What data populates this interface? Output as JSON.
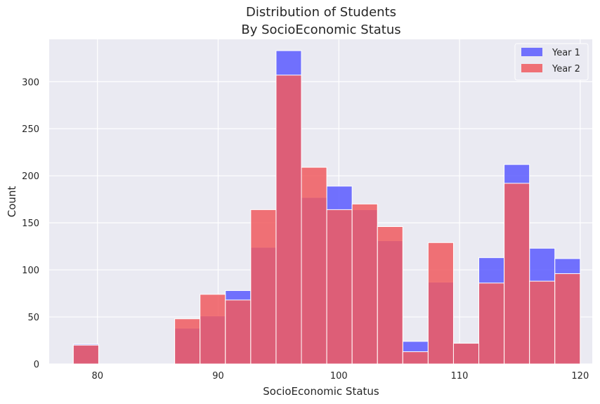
{
  "chart_data": {
    "type": "histogram",
    "title_lines": [
      "Distribution of Students",
      "By SocioEconomic Status"
    ],
    "xlabel": "SocioEconomic Status",
    "ylabel": "Count",
    "xlim": [
      76,
      121
    ],
    "ylim": [
      0,
      345
    ],
    "xticks": [
      80,
      90,
      100,
      110,
      120
    ],
    "yticks": [
      0,
      50,
      100,
      150,
      200,
      250,
      300
    ],
    "grid": true,
    "legend_position": "top-right",
    "bin_edges": [
      78,
      80.1,
      82.2,
      84.3,
      86.4,
      88.5,
      90.6,
      92.7,
      94.8,
      96.9,
      99.0,
      101.1,
      103.2,
      105.3,
      107.4,
      109.5,
      111.6,
      113.7,
      115.8,
      117.9,
      120.0
    ],
    "series": [
      {
        "name": "Year 1",
        "color": "#5a5aff",
        "values": [
          21,
          0,
          0,
          0,
          38,
          51,
          78,
          124,
          333,
          177,
          189,
          164,
          131,
          24,
          87,
          22,
          113,
          212,
          123,
          112
        ]
      },
      {
        "name": "Year 2",
        "color": "#f05a5f",
        "values": [
          20,
          0,
          0,
          0,
          48,
          74,
          68,
          164,
          307,
          209,
          164,
          170,
          146,
          13,
          129,
          22,
          86,
          192,
          88,
          96
        ]
      }
    ]
  }
}
